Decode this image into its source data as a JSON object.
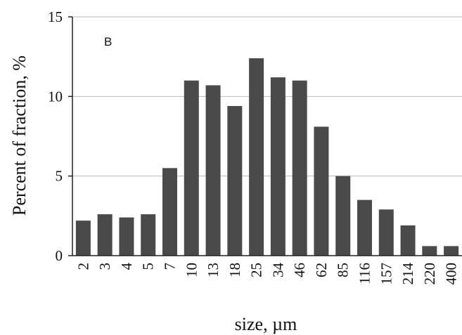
{
  "chart_data": {
    "type": "bar",
    "panel_label": "B",
    "categories": [
      "2",
      "3",
      "4",
      "5",
      "7",
      "10",
      "13",
      "18",
      "25",
      "34",
      "46",
      "62",
      "85",
      "116",
      "157",
      "214",
      "220",
      "400"
    ],
    "series": [
      {
        "values": [
          2.2,
          2.6,
          2.4,
          2.6,
          5.5,
          11.0,
          10.7,
          9.4,
          12.4,
          11.2,
          11.0,
          8.1,
          5.0,
          3.5,
          2.9,
          1.9,
          0.6,
          0.6
        ]
      }
    ],
    "xlabel": "size, µm",
    "ylabel": "Percent of fraction, %",
    "ylim": [
      0,
      15
    ],
    "yticks": [
      "0",
      "5",
      "10",
      "15"
    ],
    "grid": true,
    "bar_color": "#4a4a4a",
    "grid_color": "#b8b8b8",
    "axis_color": "#222222"
  }
}
